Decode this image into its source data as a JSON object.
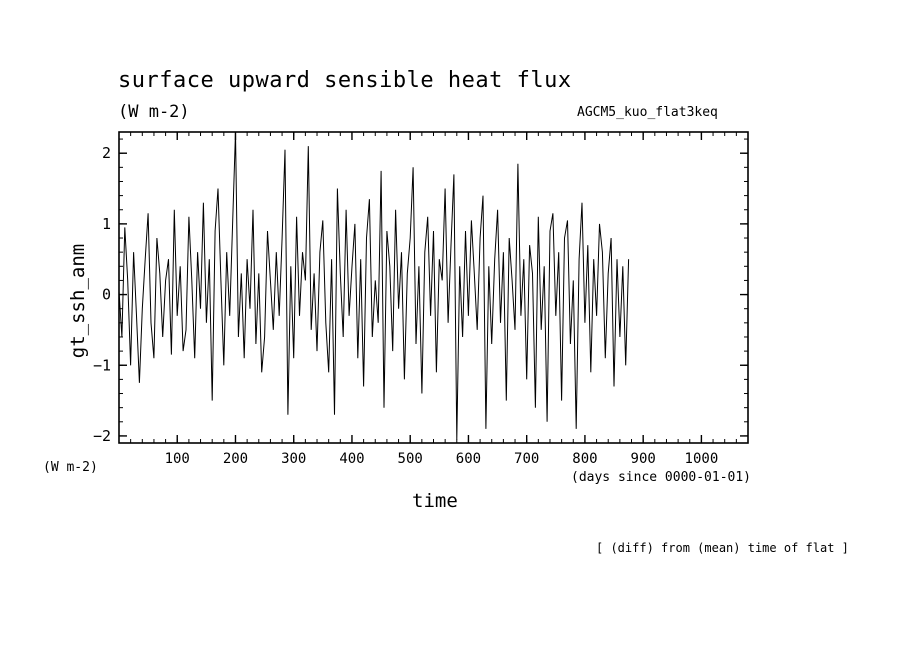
{
  "chart_data": {
    "type": "line",
    "title": "surface upward sensible heat flux",
    "units": "(W m-2)",
    "experiment": "AGCM5_kuo_flat3keq",
    "ylabel": "gt_ssh_anm",
    "y_unit_label": "(W m-2)",
    "xlabel": "time",
    "x_unit_label": "(days since 0000-01-01)",
    "note": "[ (diff) from (mean) time of flat ]",
    "xlim": [
      0,
      1080
    ],
    "ylim": [
      -2.1,
      2.3
    ],
    "x_ticks": [
      100,
      200,
      300,
      400,
      500,
      600,
      700,
      800,
      900,
      1000
    ],
    "x_tick_labels": [
      "100",
      "200",
      "300",
      "400",
      "500",
      "600",
      "700",
      "800",
      "900",
      "1000"
    ],
    "y_ticks": [
      -2,
      -1,
      0,
      1,
      2
    ],
    "y_tick_labels": [
      "−2",
      "−1",
      "0",
      "1",
      "2"
    ],
    "grid": false,
    "series": [
      {
        "x_step": 5,
        "x_start": 0,
        "values": [
          0.05,
          -0.6,
          0.95,
          0.2,
          -1.0,
          0.6,
          -0.3,
          -1.25,
          -0.2,
          0.5,
          1.15,
          -0.4,
          -0.9,
          0.8,
          0.3,
          -0.6,
          0.2,
          0.5,
          -0.85,
          1.2,
          -0.3,
          0.4,
          -0.8,
          -0.5,
          1.1,
          0.2,
          -0.9,
          0.6,
          -0.2,
          1.3,
          -0.4,
          0.5,
          -1.5,
          0.9,
          1.5,
          0.2,
          -1.0,
          0.6,
          -0.3,
          1.0,
          2.3,
          -0.6,
          0.3,
          -0.9,
          0.5,
          -0.2,
          1.2,
          -0.7,
          0.3,
          -1.1,
          -0.6,
          0.9,
          0.2,
          -0.5,
          0.6,
          -0.3,
          0.8,
          2.05,
          -1.7,
          0.4,
          -0.9,
          1.1,
          -0.3,
          0.6,
          0.2,
          2.1,
          -0.5,
          0.3,
          -0.8,
          0.6,
          1.05,
          -0.4,
          -1.1,
          0.5,
          -1.7,
          1.5,
          0.3,
          -0.6,
          1.2,
          -0.3,
          0.4,
          1.0,
          -0.9,
          0.5,
          -1.3,
          0.8,
          1.35,
          -0.6,
          0.2,
          -0.4,
          1.75,
          -1.6,
          0.9,
          0.4,
          -0.8,
          1.2,
          -0.2,
          0.6,
          -1.2,
          0.3,
          0.8,
          1.8,
          -0.7,
          0.4,
          -1.4,
          0.6,
          1.1,
          -0.3,
          0.9,
          -1.1,
          0.5,
          0.2,
          1.5,
          -0.4,
          0.7,
          1.7,
          -2.05,
          0.4,
          -0.6,
          0.9,
          -0.3,
          1.05,
          0.3,
          -0.5,
          0.8,
          1.4,
          -1.9,
          0.4,
          -0.7,
          0.5,
          1.2,
          -0.4,
          0.6,
          -1.5,
          0.8,
          0.2,
          -0.5,
          1.85,
          -0.3,
          0.5,
          -1.2,
          0.7,
          0.3,
          -1.6,
          1.1,
          -0.5,
          0.4,
          -1.8,
          0.9,
          1.15,
          -0.3,
          0.6,
          -1.5,
          0.8,
          1.05,
          -0.7,
          0.2,
          -1.9,
          0.5,
          1.3,
          -0.4,
          0.7,
          -1.1,
          0.5,
          -0.3,
          1.0,
          0.6,
          -0.9,
          0.3,
          0.8,
          -1.3,
          0.5,
          -0.6,
          0.4,
          -1.0,
          0.5
        ]
      }
    ]
  }
}
